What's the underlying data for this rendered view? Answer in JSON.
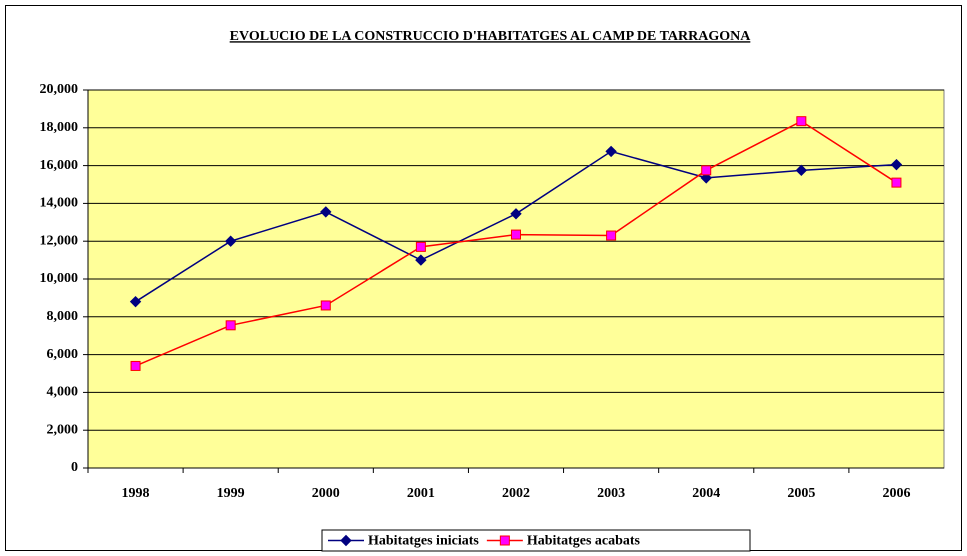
{
  "chart_data": {
    "type": "line",
    "title": "EVOLUCIO DE LA CONSTRUCCIO D'HABITATGES AL CAMP DE TARRAGONA",
    "categories": [
      "1998",
      "1999",
      "2000",
      "2001",
      "2002",
      "2003",
      "2004",
      "2005",
      "2006"
    ],
    "series": [
      {
        "name": "Habitatges iniciats",
        "color": "#000080",
        "marker": "diamond",
        "marker_color": "#000080",
        "values": [
          8800,
          12000,
          13550,
          11000,
          13450,
          16750,
          15350,
          15750,
          16050
        ]
      },
      {
        "name": "Habitatges acabats",
        "color": "#ff0000",
        "marker": "square",
        "marker_color": "#ff00ff",
        "values": [
          5400,
          7550,
          8600,
          11700,
          12350,
          12300,
          15750,
          18350,
          15100
        ]
      }
    ],
    "ylim": [
      0,
      20000
    ],
    "yticks": [
      0,
      {
        "value": 2000,
        "label": "2,000"
      },
      {
        "value": 4000,
        "label": "4,000"
      },
      {
        "value": 6000,
        "label": "6,000"
      },
      {
        "value": 8000,
        "label": "8,000"
      },
      {
        "value": 10000,
        "label": "10,000"
      },
      {
        "value": 12000,
        "label": "12,000"
      },
      {
        "value": 14000,
        "label": "14,000"
      },
      {
        "value": 16000,
        "label": "16,000"
      },
      {
        "value": 18000,
        "label": "18,000"
      },
      {
        "value": 20000,
        "label": "20,000"
      }
    ],
    "grid": true,
    "plot_background": "#ffff99",
    "legend": "bottom"
  }
}
